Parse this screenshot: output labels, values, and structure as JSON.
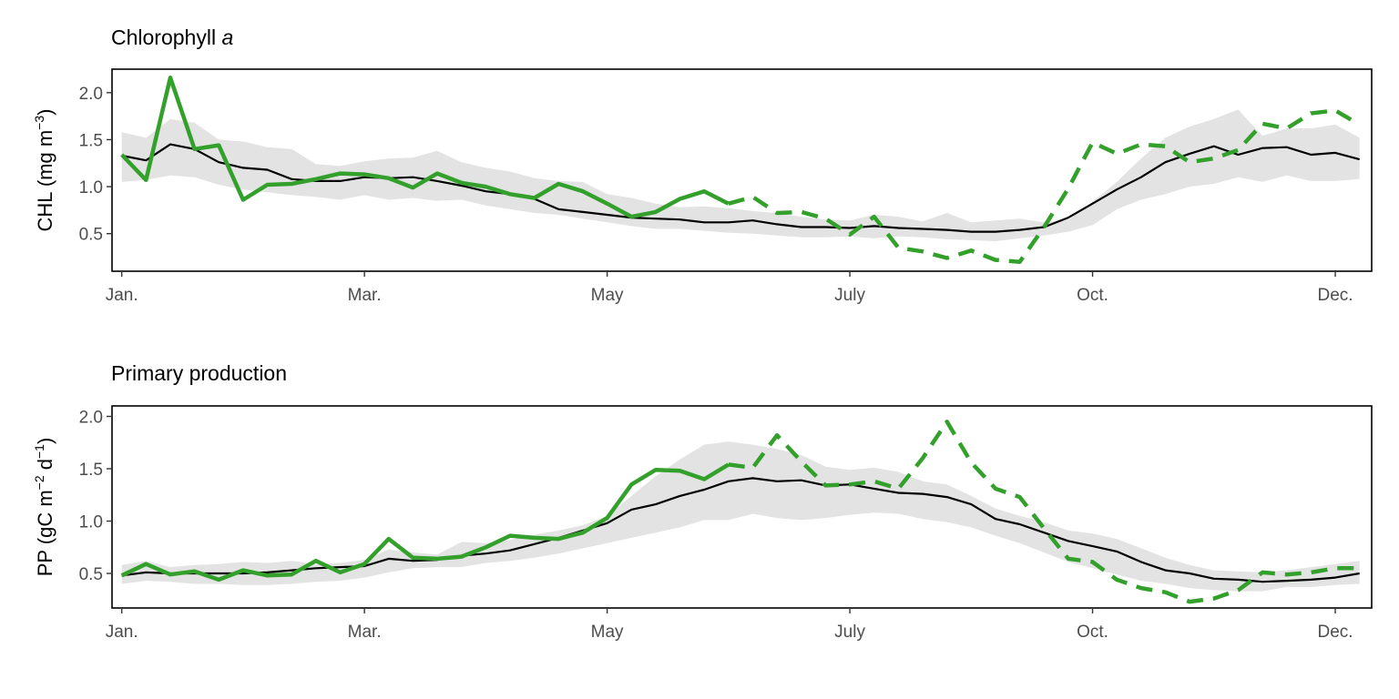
{
  "chart_data": [
    {
      "type": "line",
      "title": "Chlorophyll",
      "title_italic_suffix": "a",
      "ylabel": "CHL (mg m",
      "ylabel_sup": "−3",
      "ylabel_close": ")",
      "xlabel": "",
      "ylim": [
        0.1,
        2.25
      ],
      "yticks": [
        0.5,
        1.0,
        1.5,
        2.0
      ],
      "ytick_labels": [
        "0.5",
        "1.0",
        "1.5",
        "2.0"
      ],
      "xlim": [
        0.6,
        52.5
      ],
      "xticks": [
        1,
        11,
        21,
        31,
        41,
        51
      ],
      "xtick_labels": [
        "Jan.",
        "Mar.",
        "May",
        "July",
        "Oct.",
        "Dec."
      ],
      "x_unit": "week of year",
      "colors": {
        "observed": "#33a02c",
        "climatology": "#000000",
        "band": "#e3e3e3"
      },
      "band": {
        "x": [
          1,
          2,
          3,
          4,
          5,
          6,
          7,
          8,
          9,
          10,
          11,
          12,
          13,
          14,
          15,
          16,
          17,
          18,
          19,
          20,
          21,
          22,
          23,
          24,
          25,
          26,
          27,
          28,
          29,
          30,
          31,
          32,
          33,
          34,
          35,
          36,
          37,
          38,
          39,
          40,
          41,
          42,
          43,
          44,
          45,
          46,
          47,
          48,
          49,
          50,
          51,
          52
        ],
        "lower": [
          1.05,
          1.07,
          1.12,
          1.1,
          1.02,
          0.97,
          0.94,
          0.91,
          0.89,
          0.86,
          0.91,
          0.86,
          0.88,
          0.85,
          0.86,
          0.8,
          0.76,
          0.72,
          0.7,
          0.66,
          0.62,
          0.58,
          0.55,
          0.55,
          0.53,
          0.51,
          0.5,
          0.48,
          0.46,
          0.46,
          0.47,
          0.45,
          0.47,
          0.46,
          0.44,
          0.43,
          0.42,
          0.45,
          0.48,
          0.52,
          0.59,
          0.76,
          0.86,
          0.92,
          1.0,
          1.03,
          1.1,
          1.05,
          1.12,
          1.06,
          1.06,
          1.08
        ],
        "upper": [
          1.58,
          1.52,
          1.72,
          1.68,
          1.5,
          1.48,
          1.42,
          1.4,
          1.24,
          1.22,
          1.27,
          1.3,
          1.31,
          1.38,
          1.26,
          1.2,
          1.16,
          1.09,
          1.06,
          1.05,
          0.92,
          0.88,
          0.82,
          0.78,
          0.79,
          0.77,
          0.74,
          0.72,
          0.68,
          0.65,
          0.64,
          0.7,
          0.68,
          0.63,
          0.72,
          0.62,
          0.64,
          0.66,
          0.62,
          0.65,
          0.84,
          1.05,
          1.3,
          1.52,
          1.64,
          1.72,
          1.82,
          1.54,
          1.62,
          1.62,
          1.66,
          1.52
        ]
      },
      "series": [
        {
          "role": "climatology",
          "x": [
            1,
            2,
            3,
            4,
            5,
            6,
            7,
            8,
            9,
            10,
            11,
            12,
            13,
            14,
            15,
            16,
            17,
            18,
            19,
            20,
            21,
            22,
            23,
            24,
            25,
            26,
            27,
            28,
            29,
            30,
            31,
            32,
            33,
            34,
            35,
            36,
            37,
            38,
            39,
            40,
            41,
            42,
            43,
            44,
            45,
            46,
            47,
            48,
            49,
            50,
            51,
            52
          ],
          "values": [
            1.33,
            1.28,
            1.45,
            1.4,
            1.26,
            1.2,
            1.18,
            1.08,
            1.06,
            1.06,
            1.1,
            1.09,
            1.1,
            1.06,
            1.01,
            0.95,
            0.92,
            0.87,
            0.76,
            0.73,
            0.7,
            0.67,
            0.66,
            0.65,
            0.62,
            0.62,
            0.64,
            0.6,
            0.57,
            0.57,
            0.56,
            0.58,
            0.56,
            0.55,
            0.54,
            0.52,
            0.52,
            0.54,
            0.57,
            0.67,
            0.82,
            0.97,
            1.1,
            1.26,
            1.35,
            1.43,
            1.34,
            1.41,
            1.42,
            1.34,
            1.36,
            1.29
          ]
        },
        {
          "role": "observed-solid",
          "x": [
            1,
            2,
            3,
            4,
            5,
            6,
            7,
            8,
            9,
            10,
            11,
            12,
            13,
            14,
            15,
            16,
            17,
            18,
            19,
            20,
            21,
            22,
            23,
            24,
            25,
            26
          ],
          "values": [
            1.34,
            1.07,
            2.16,
            1.4,
            1.44,
            0.86,
            1.02,
            1.03,
            1.08,
            1.14,
            1.13,
            1.09,
            0.99,
            1.14,
            1.04,
            1.0,
            0.92,
            0.88,
            1.03,
            0.95,
            0.82,
            0.68,
            0.73,
            0.87,
            0.95,
            0.82
          ]
        },
        {
          "role": "observed-dashed",
          "x": [
            26,
            27,
            28,
            29,
            30,
            31,
            32,
            33,
            34,
            35,
            36,
            37,
            38,
            39,
            40,
            41,
            42,
            43,
            44,
            45,
            46,
            47,
            48,
            49,
            50,
            51,
            52
          ],
          "values": [
            0.82,
            0.89,
            0.72,
            0.73,
            0.66,
            0.49,
            0.68,
            0.35,
            0.31,
            0.24,
            0.32,
            0.22,
            0.2,
            0.57,
            0.98,
            1.47,
            1.35,
            1.45,
            1.43,
            1.26,
            1.3,
            1.39,
            1.67,
            1.62,
            1.78,
            1.81,
            1.66
          ]
        }
      ]
    },
    {
      "type": "line",
      "title": "Primary production",
      "ylabel": "PP (gC m",
      "ylabel_sup1": "−2",
      "ylabel_mid": " d",
      "ylabel_sup2": "−1",
      "ylabel_close": ")",
      "xlabel": "",
      "ylim": [
        0.17,
        2.1
      ],
      "yticks": [
        0.5,
        1.0,
        1.5,
        2.0
      ],
      "ytick_labels": [
        "0.5",
        "1.0",
        "1.5",
        "2.0"
      ],
      "xlim": [
        0.6,
        52.5
      ],
      "xticks": [
        1,
        11,
        21,
        31,
        41,
        51
      ],
      "xtick_labels": [
        "Jan.",
        "Mar.",
        "May",
        "July",
        "Oct.",
        "Dec."
      ],
      "x_unit": "week of year",
      "colors": {
        "observed": "#33a02c",
        "climatology": "#000000",
        "band": "#e3e3e3"
      },
      "band": {
        "x": [
          1,
          2,
          3,
          4,
          5,
          6,
          7,
          8,
          9,
          10,
          11,
          12,
          13,
          14,
          15,
          16,
          17,
          18,
          19,
          20,
          21,
          22,
          23,
          24,
          25,
          26,
          27,
          28,
          29,
          30,
          31,
          32,
          33,
          34,
          35,
          36,
          37,
          38,
          39,
          40,
          41,
          42,
          43,
          44,
          45,
          46,
          47,
          48,
          49,
          50,
          51,
          52
        ],
        "lower": [
          0.4,
          0.43,
          0.42,
          0.4,
          0.4,
          0.39,
          0.39,
          0.4,
          0.42,
          0.43,
          0.46,
          0.51,
          0.55,
          0.56,
          0.56,
          0.6,
          0.62,
          0.65,
          0.69,
          0.74,
          0.79,
          0.84,
          0.89,
          0.94,
          1.01,
          1.01,
          1.07,
          1.03,
          1.01,
          1.03,
          1.06,
          1.08,
          1.07,
          1.02,
          0.99,
          0.94,
          0.86,
          0.79,
          0.7,
          0.61,
          0.55,
          0.49,
          0.43,
          0.4,
          0.36,
          0.34,
          0.33,
          0.33,
          0.37,
          0.37,
          0.39,
          0.4
        ],
        "upper": [
          0.58,
          0.62,
          0.56,
          0.58,
          0.59,
          0.61,
          0.6,
          0.62,
          0.59,
          0.6,
          0.63,
          0.73,
          0.7,
          0.68,
          0.8,
          0.79,
          0.82,
          0.87,
          0.91,
          0.96,
          1.05,
          1.24,
          1.43,
          1.59,
          1.73,
          1.76,
          1.73,
          1.69,
          1.63,
          1.52,
          1.49,
          1.51,
          1.47,
          1.38,
          1.35,
          1.24,
          1.12,
          1.05,
          0.99,
          0.91,
          0.88,
          0.83,
          0.74,
          0.65,
          0.58,
          0.53,
          0.52,
          0.51,
          0.53,
          0.56,
          0.59,
          0.62
        ]
      },
      "series": [
        {
          "role": "climatology",
          "x": [
            1,
            2,
            3,
            4,
            5,
            6,
            7,
            8,
            9,
            10,
            11,
            12,
            13,
            14,
            15,
            16,
            17,
            18,
            19,
            20,
            21,
            22,
            23,
            24,
            25,
            26,
            27,
            28,
            29,
            30,
            31,
            32,
            33,
            34,
            35,
            36,
            37,
            38,
            39,
            40,
            41,
            42,
            43,
            44,
            45,
            46,
            47,
            48,
            49,
            50,
            51,
            52
          ],
          "values": [
            0.48,
            0.51,
            0.5,
            0.5,
            0.5,
            0.5,
            0.51,
            0.53,
            0.55,
            0.56,
            0.57,
            0.64,
            0.62,
            0.63,
            0.67,
            0.69,
            0.72,
            0.78,
            0.84,
            0.91,
            0.98,
            1.11,
            1.16,
            1.24,
            1.3,
            1.38,
            1.41,
            1.38,
            1.39,
            1.34,
            1.35,
            1.31,
            1.27,
            1.26,
            1.23,
            1.16,
            1.02,
            0.97,
            0.89,
            0.81,
            0.76,
            0.71,
            0.61,
            0.53,
            0.5,
            0.45,
            0.44,
            0.42,
            0.43,
            0.44,
            0.46,
            0.5
          ]
        },
        {
          "role": "observed-solid",
          "x": [
            1,
            2,
            3,
            4,
            5,
            6,
            7,
            8,
            9,
            10,
            11,
            12,
            13,
            14,
            15,
            16,
            17,
            18,
            19,
            20,
            21,
            22,
            23,
            24,
            25,
            26
          ],
          "values": [
            0.48,
            0.59,
            0.49,
            0.52,
            0.44,
            0.53,
            0.48,
            0.49,
            0.62,
            0.51,
            0.59,
            0.83,
            0.65,
            0.64,
            0.66,
            0.75,
            0.86,
            0.84,
            0.83,
            0.89,
            1.03,
            1.35,
            1.49,
            1.48,
            1.4,
            1.54
          ]
        },
        {
          "role": "observed-dashed",
          "x": [
            26,
            27,
            28,
            29,
            30,
            31,
            32,
            33,
            34,
            35,
            36,
            37,
            38,
            39,
            40,
            41,
            42,
            43,
            44,
            45,
            46,
            47,
            48,
            49,
            50,
            51,
            52
          ],
          "values": [
            1.54,
            1.51,
            1.82,
            1.57,
            1.34,
            1.35,
            1.38,
            1.31,
            1.6,
            1.95,
            1.56,
            1.31,
            1.23,
            0.93,
            0.64,
            0.61,
            0.44,
            0.36,
            0.32,
            0.23,
            0.26,
            0.34,
            0.51,
            0.49,
            0.51,
            0.55,
            0.55
          ]
        }
      ]
    }
  ]
}
